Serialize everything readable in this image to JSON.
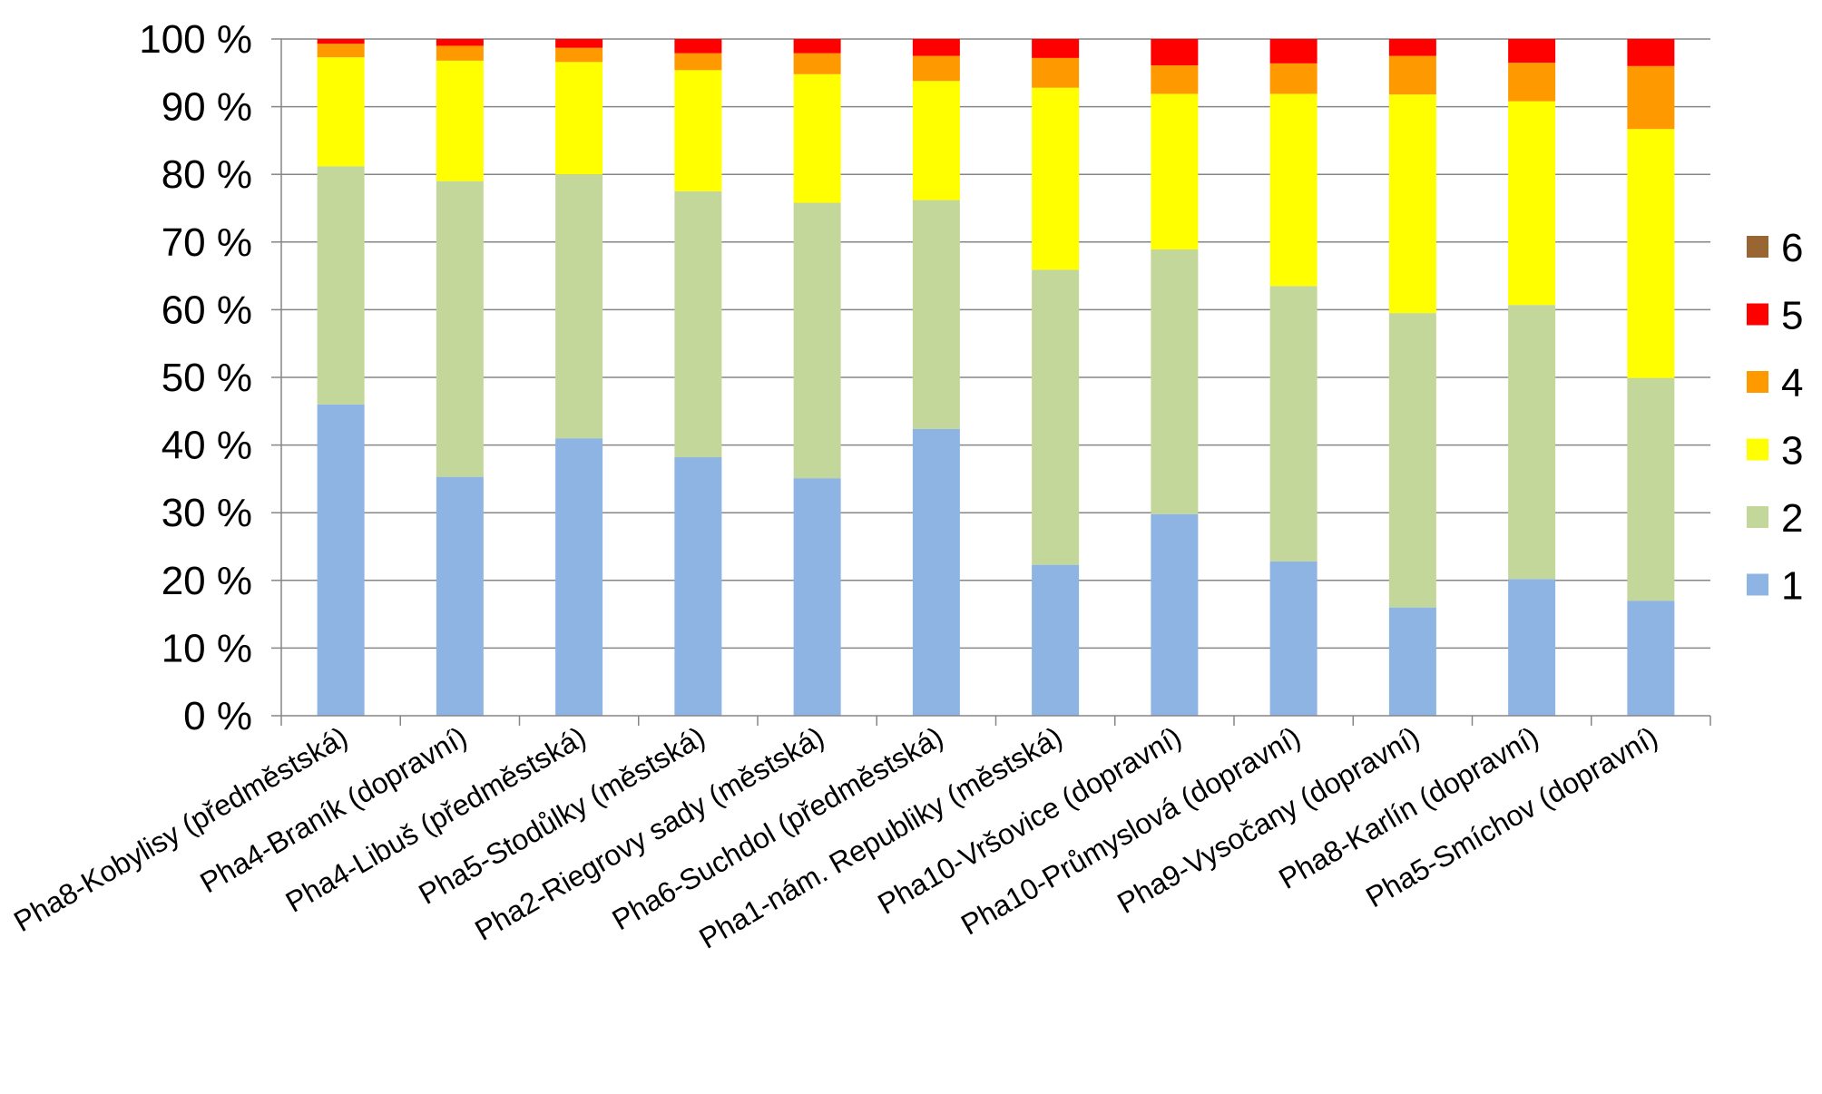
{
  "chart_data": {
    "type": "bar",
    "stacked": true,
    "normalized_percent": true,
    "title": "",
    "xlabel": "",
    "ylabel": "",
    "ylim": [
      0,
      100
    ],
    "y_ticks": [
      "0 %",
      "10 %",
      "20 %",
      "30 %",
      "40 %",
      "50 %",
      "60 %",
      "70 %",
      "80 %",
      "90 %",
      "100 %"
    ],
    "grid": "horizontal",
    "legend_position": "right",
    "categories": [
      "Pha8-Kobylisy (předměstská)",
      "Pha4-Braník (dopravní)",
      "Pha4-Libuš (předměstská)",
      "Pha5-Stodůlky (městská)",
      "Pha2-Riegrovy sady (městská)",
      "Pha6-Suchdol (předměstská)",
      "Pha1-nám. Republiky (městská)",
      "Pha10-Vršovice (dopravní)",
      "Pha10-Průmyslová (dopravní)",
      "Pha9-Vysočany (dopravní)",
      "Pha8-Karlín (dopravní)",
      "Pha5-Smíchov (dopravní)"
    ],
    "series": [
      {
        "name": "1",
        "color": "#8DB4E2",
        "values": [
          46,
          35.3,
          41,
          38.2,
          35.1,
          42.4,
          22.3,
          29.8,
          22.8,
          16,
          20.2,
          17
        ]
      },
      {
        "name": "2",
        "color": "#C4D79B",
        "values": [
          35.2,
          43.7,
          39,
          39.3,
          40.7,
          33.8,
          43.6,
          39.1,
          40.7,
          43.5,
          40.5,
          32.9
        ]
      },
      {
        "name": "3",
        "color": "#FFFF00",
        "values": [
          16.1,
          17.8,
          16.6,
          17.9,
          19,
          17.6,
          26.9,
          23,
          28.4,
          32.3,
          30.1,
          36.8
        ]
      },
      {
        "name": "4",
        "color": "#FF9900",
        "values": [
          2,
          2.2,
          2.1,
          2.5,
          3.1,
          3.7,
          4.4,
          4.2,
          4.5,
          5.7,
          5.7,
          9.3
        ]
      },
      {
        "name": "5",
        "color": "#FF0000",
        "values": [
          0.7,
          1,
          1.3,
          2.1,
          2.1,
          2.5,
          2.8,
          3.9,
          3.6,
          2.5,
          3.5,
          4
        ]
      },
      {
        "name": "6",
        "color": "#996633",
        "values": [
          0,
          0,
          0,
          0,
          0,
          0,
          0,
          0,
          0,
          0,
          0,
          0
        ]
      }
    ]
  }
}
